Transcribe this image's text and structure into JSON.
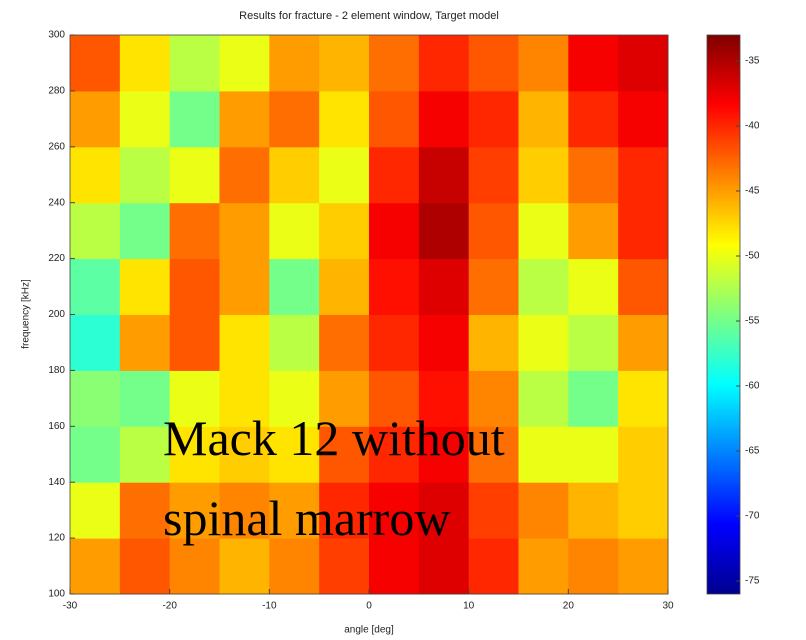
{
  "chart_data": {
    "type": "heatmap",
    "title": "Results for fracture - 2 element window, Target model",
    "xlabel": "angle [deg]",
    "ylabel": "frequency [kHz]",
    "annotation": "Mack 12 without spinal marrow",
    "colormap": "jet",
    "x": [
      -27.5,
      -22.5,
      -17.5,
      -12.5,
      -7.5,
      -2.5,
      2.5,
      7.5,
      12.5,
      17.5,
      22.5,
      27.5
    ],
    "y": [
      110,
      130,
      150,
      170,
      190,
      210,
      230,
      250,
      270,
      290
    ],
    "values": [
      [
        -45,
        -42,
        -44,
        -46,
        -44,
        -41,
        -38,
        -37,
        -40,
        -45,
        -44,
        -45
      ],
      [
        -50,
        -43,
        -45,
        -44,
        -45,
        -40,
        -38,
        -37,
        -41,
        -44,
        -46,
        -47
      ],
      [
        -55,
        -52,
        -48,
        -47,
        -48,
        -42,
        -40,
        -38,
        -43,
        -50,
        -50,
        -47
      ],
      [
        -54,
        -55,
        -50,
        -48,
        -50,
        -45,
        -42,
        -39,
        -44,
        -52,
        -55,
        -48
      ],
      [
        -58,
        -45,
        -42,
        -48,
        -52,
        -43,
        -40,
        -38,
        -46,
        -50,
        -52,
        -45
      ],
      [
        -56,
        -48,
        -42,
        -45,
        -55,
        -46,
        -39,
        -37,
        -43,
        -52,
        -50,
        -42
      ],
      [
        -52,
        -55,
        -43,
        -45,
        -50,
        -47,
        -38,
        -35,
        -42,
        -50,
        -45,
        -40
      ],
      [
        -48,
        -52,
        -50,
        -43,
        -47,
        -50,
        -40,
        -36,
        -41,
        -47,
        -43,
        -40
      ],
      [
        -45,
        -50,
        -55,
        -45,
        -43,
        -48,
        -42,
        -38,
        -40,
        -46,
        -40,
        -38
      ],
      [
        -42,
        -48,
        -52,
        -50,
        -45,
        -46,
        -43,
        -40,
        -42,
        -44,
        -38,
        -37
      ]
    ],
    "xlim": [
      -30,
      30
    ],
    "xticks": [
      -30,
      -20,
      -10,
      0,
      10,
      20,
      30
    ],
    "ylim": [
      100,
      300
    ],
    "yticks": [
      100,
      120,
      140,
      160,
      180,
      200,
      220,
      240,
      260,
      280,
      300
    ],
    "clim": [
      -76,
      -33
    ],
    "cticks": [
      -75,
      -70,
      -65,
      -60,
      -55,
      -50,
      -45,
      -40,
      -35
    ]
  }
}
